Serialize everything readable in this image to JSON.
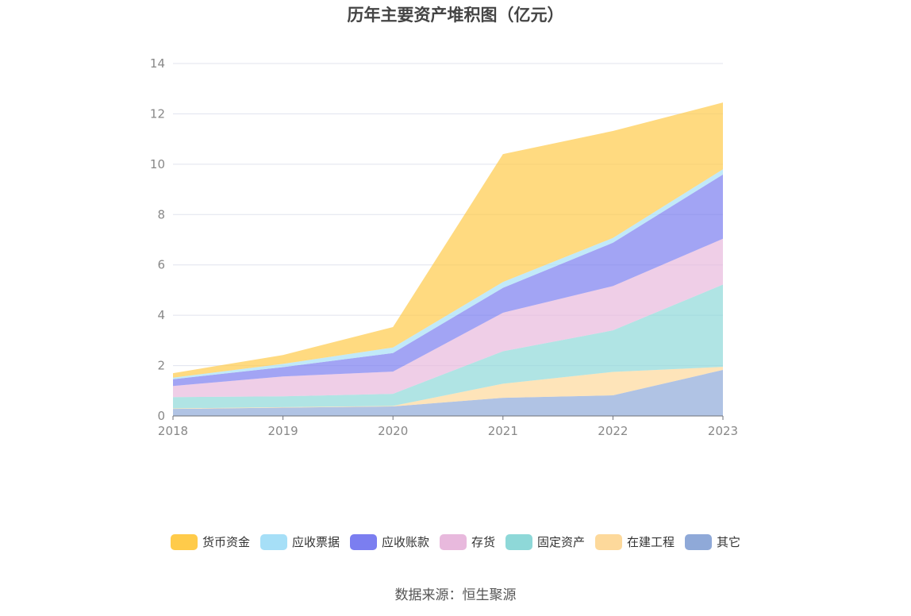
{
  "source_text": "数据来源：恒生聚源",
  "chart_data": {
    "type": "area",
    "stacked": true,
    "title": "历年主要资产堆积图（亿元）",
    "x": [
      "2018",
      "2019",
      "2020",
      "2021",
      "2022",
      "2023"
    ],
    "ylim": [
      0,
      14
    ],
    "yticks": [
      0,
      2,
      4,
      6,
      8,
      10,
      12,
      14
    ],
    "grid": true,
    "legend_position": "bottom",
    "series": [
      {
        "name": "其它",
        "color": "#8fa9d8",
        "values": [
          0.28,
          0.33,
          0.38,
          0.72,
          0.82,
          1.83
        ]
      },
      {
        "name": "在建工程",
        "color": "#fdd99b",
        "values": [
          0.02,
          0.02,
          0.02,
          0.56,
          0.93,
          0.12
        ]
      },
      {
        "name": "固定资产",
        "color": "#8ed8d8",
        "values": [
          0.45,
          0.43,
          0.48,
          1.29,
          1.65,
          3.27
        ]
      },
      {
        "name": "存货",
        "color": "#e8b9dd",
        "values": [
          0.44,
          0.79,
          0.88,
          1.53,
          1.76,
          1.82
        ]
      },
      {
        "name": "应收账款",
        "color": "#7b7ef0",
        "values": [
          0.27,
          0.37,
          0.74,
          0.99,
          1.72,
          2.55
        ]
      },
      {
        "name": "应收票据",
        "color": "#a6dff7",
        "values": [
          0.06,
          0.13,
          0.22,
          0.23,
          0.19,
          0.21
        ]
      },
      {
        "name": "货币资金",
        "color": "#ffcb4a",
        "values": [
          0.18,
          0.35,
          0.81,
          5.08,
          4.25,
          2.65
        ]
      }
    ],
    "legend_order": [
      "货币资金",
      "应收票据",
      "应收账款",
      "存货",
      "固定资产",
      "在建工程",
      "其它"
    ]
  }
}
